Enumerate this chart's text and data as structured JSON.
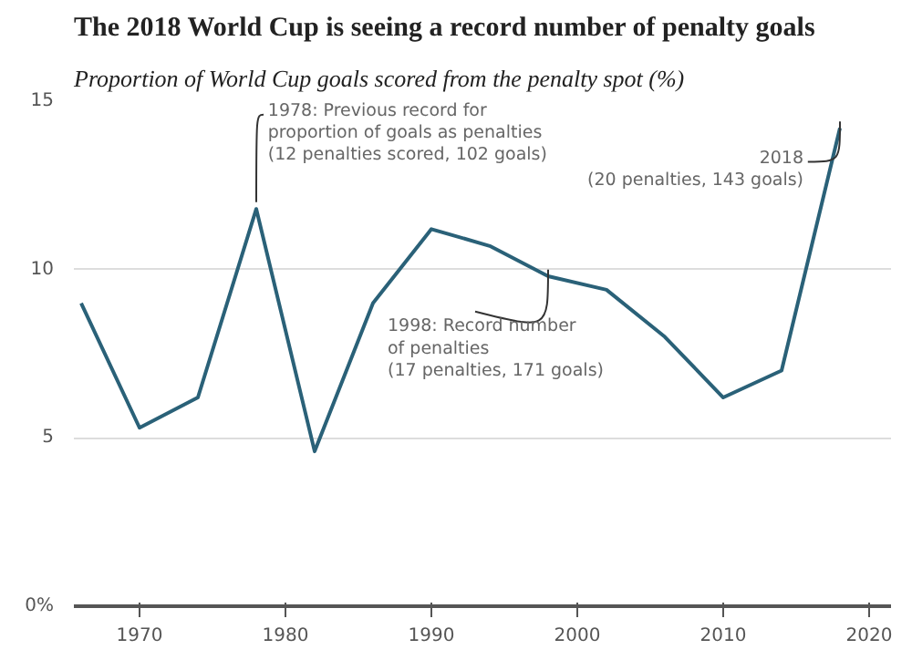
{
  "chart_data": {
    "type": "line",
    "title": "The 2018 World Cup is seeing a record number of penalty goals",
    "subtitle": "Proportion of World Cup goals scored from the penalty spot (%)",
    "x": [
      1966,
      1970,
      1974,
      1978,
      1982,
      1986,
      1990,
      1994,
      1998,
      2002,
      2006,
      2010,
      2014,
      2018
    ],
    "series": [
      {
        "color": "#2a6178",
        "values": [
          9.0,
          5.3,
          6.2,
          11.8,
          4.6,
          9.0,
          11.2,
          10.7,
          9.8,
          9.4,
          8.0,
          6.2,
          7.0,
          14.2
        ]
      }
    ],
    "xlim": [
      1965.5,
      2021.5
    ],
    "xticks": [
      1970,
      1980,
      1990,
      2000,
      2010,
      2020
    ],
    "ylim": [
      0,
      15
    ],
    "yticks": [
      {
        "value": 0,
        "label": "0%"
      },
      5,
      10,
      15
    ],
    "grid": "y",
    "line_style": "solid",
    "annotations": [
      {
        "text": "1978: Previous record for\nproportion of goals as penalties\n(12 penalties scored, 102 goals)",
        "x": 1978,
        "y": 11.8
      },
      {
        "text": "1998: Record number\nof penalties\n(17 penalties, 171 goals)",
        "x": 1998,
        "y": 9.8
      },
      {
        "text": "2018\n(20 penalties, 143 goals)",
        "x": 2018,
        "y": 14.2
      }
    ]
  }
}
